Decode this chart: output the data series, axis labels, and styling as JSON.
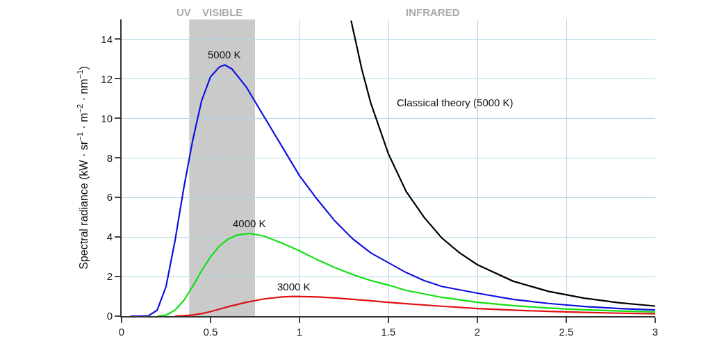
{
  "chart_data": {
    "type": "line",
    "ylabel": "Spectral radiance (kW · sr$^{−1}$ · m$^{−2}$ · nm$^{−1}$)",
    "xlim": [
      0,
      3
    ],
    "xticks": [
      0,
      0.5,
      1,
      1.5,
      2,
      2.5,
      3
    ],
    "ylim": [
      0,
      15
    ],
    "yticks": [
      0,
      2,
      4,
      6,
      8,
      10,
      12,
      14
    ],
    "grid": true,
    "legend": false,
    "marker": "none",
    "line_style": "solid",
    "series": [
      {
        "name": "5000 K",
        "color": "#1010e0",
        "x": [
          0.05,
          0.1,
          0.15,
          0.2,
          0.25,
          0.3,
          0.35,
          0.4,
          0.45,
          0.5,
          0.55,
          0.58,
          0.62,
          0.7,
          0.8,
          0.9,
          1.0,
          1.1,
          1.2,
          1.3,
          1.4,
          1.5,
          1.6,
          1.7,
          1.8,
          2.0,
          2.2,
          2.4,
          2.6,
          2.8,
          3.0
        ],
        "values": [
          0,
          0,
          0.01,
          0.3,
          1.5,
          3.8,
          6.5,
          8.9,
          10.9,
          12.1,
          12.6,
          12.7,
          12.5,
          11.6,
          10.1,
          8.6,
          7.1,
          5.9,
          4.8,
          3.9,
          3.2,
          2.7,
          2.2,
          1.8,
          1.5,
          1.16,
          0.85,
          0.64,
          0.49,
          0.38,
          0.31
        ]
      },
      {
        "name": "4000 K",
        "color": "#10e010",
        "x": [
          0.2,
          0.25,
          0.3,
          0.35,
          0.4,
          0.45,
          0.5,
          0.55,
          0.6,
          0.65,
          0.72,
          0.8,
          0.9,
          1.0,
          1.1,
          1.2,
          1.3,
          1.4,
          1.5,
          1.6,
          1.8,
          2.0,
          2.2,
          2.4,
          2.6,
          2.8,
          3.0
        ],
        "values": [
          0,
          0.05,
          0.3,
          0.8,
          1.5,
          2.3,
          3.0,
          3.55,
          3.9,
          4.1,
          4.18,
          4.05,
          3.7,
          3.3,
          2.85,
          2.45,
          2.1,
          1.8,
          1.57,
          1.3,
          0.95,
          0.7,
          0.53,
          0.41,
          0.32,
          0.26,
          0.21
        ]
      },
      {
        "name": "3000 K",
        "color": "#e01010",
        "x": [
          0.3,
          0.35,
          0.4,
          0.45,
          0.5,
          0.55,
          0.6,
          0.7,
          0.8,
          0.9,
          0.97,
          1.1,
          1.2,
          1.3,
          1.4,
          1.5,
          1.6,
          1.8,
          2.0,
          2.2,
          2.4,
          2.6,
          2.8,
          3.0
        ],
        "values": [
          0,
          0.02,
          0.06,
          0.13,
          0.23,
          0.35,
          0.48,
          0.7,
          0.87,
          0.97,
          1.0,
          0.97,
          0.92,
          0.85,
          0.78,
          0.7,
          0.63,
          0.5,
          0.38,
          0.3,
          0.24,
          0.19,
          0.15,
          0.12
        ]
      },
      {
        "name": "Classical theory (5000 K)",
        "color": "#000000",
        "x": [
          1.29,
          1.35,
          1.4,
          1.5,
          1.6,
          1.7,
          1.8,
          1.9,
          2.0,
          2.2,
          2.4,
          2.6,
          2.8,
          3.0
        ],
        "values": [
          14.95,
          12.5,
          10.8,
          8.2,
          6.3,
          5.0,
          3.95,
          3.2,
          2.6,
          1.77,
          1.25,
          0.91,
          0.67,
          0.51
        ]
      }
    ],
    "bands": [
      {
        "axis": "x",
        "from": 0.38,
        "to": 0.75,
        "label": "VISIBLE",
        "color": "#bdbdbd"
      }
    ],
    "annotations": [
      "UV",
      "INFRARED"
    ]
  }
}
